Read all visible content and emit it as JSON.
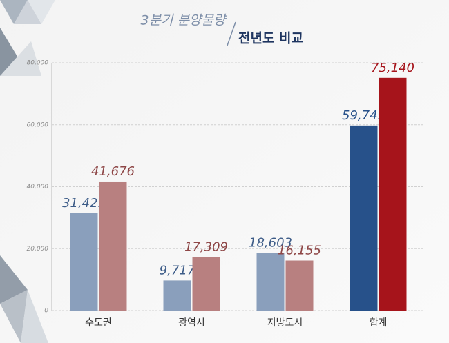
{
  "chart_data": {
    "type": "bar",
    "title": "3분기 분양물량",
    "subtitle": "전년도 비교",
    "categories": [
      "수도권",
      "광역시",
      "지방도시",
      "합계"
    ],
    "series": [
      {
        "colors": [
          "#8a9fbc",
          "#8a9fbc",
          "#8a9fbc",
          "#27518a"
        ],
        "label_colors": [
          "#3d5c88",
          "#3d5c88",
          "#3d5c88",
          "#27518a"
        ],
        "values": [
          31429,
          9717,
          18603,
          59749
        ],
        "value_labels": [
          "31,429",
          "9,717",
          "18,603",
          "59,749"
        ]
      },
      {
        "colors": [
          "#b88080",
          "#b88080",
          "#b88080",
          "#a6141b"
        ],
        "label_colors": [
          "#8e4646",
          "#8e4646",
          "#8e4646",
          "#a6141b"
        ],
        "values": [
          41676,
          17309,
          16155,
          75140
        ],
        "value_labels": [
          "41,676",
          "17,309",
          "16,155",
          "75,140"
        ]
      }
    ],
    "ylim": [
      0,
      80000
    ],
    "yticks": [
      0,
      {
        "value": 20000,
        "label": "20,000"
      },
      {
        "value": 40000,
        "label": "40,000"
      },
      {
        "value": 60000,
        "label": "60,000"
      },
      {
        "value": 80000,
        "label": "80,000"
      }
    ],
    "grid": true
  }
}
